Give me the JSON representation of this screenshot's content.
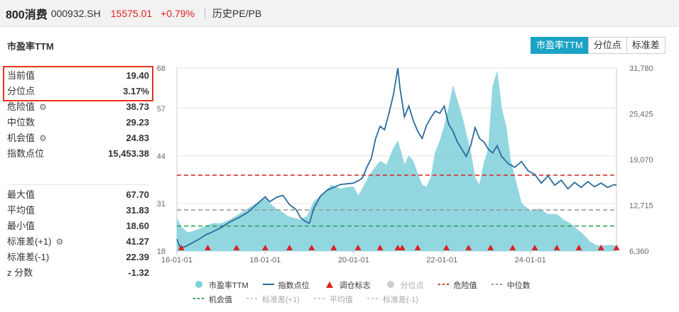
{
  "header": {
    "name": "800消费",
    "code": "000932.SH",
    "price": "15575.01",
    "change": "+0.79%",
    "tab": "历史PE/PB"
  },
  "metric_title": "市盈率TTM",
  "tabs": [
    {
      "label": "市盈率TTM",
      "active": true
    },
    {
      "label": "分位点",
      "active": false
    },
    {
      "label": "标准差",
      "active": false
    }
  ],
  "stats_top": [
    {
      "label": "当前值",
      "value": "19.40",
      "gear": false
    },
    {
      "label": "分位点",
      "value": "3.17%",
      "gear": false
    },
    {
      "label": "危险值",
      "value": "38.73",
      "gear": true
    },
    {
      "label": "中位数",
      "value": "29.23",
      "gear": false
    },
    {
      "label": "机会值",
      "value": "24.83",
      "gear": true
    },
    {
      "label": "指数点位",
      "value": "15,453.38",
      "gear": false
    }
  ],
  "stats_bottom": [
    {
      "label": "最大值",
      "value": "67.70",
      "gear": false
    },
    {
      "label": "平均值",
      "value": "31.83",
      "gear": false
    },
    {
      "label": "最小值",
      "value": "18.60",
      "gear": false
    },
    {
      "label": "标准差(+1)",
      "value": "41.27",
      "gear": true
    },
    {
      "label": "标准差(-1)",
      "value": "22.39",
      "gear": false
    },
    {
      "label": "z 分数",
      "value": "-1.32",
      "gear": false
    }
  ],
  "legend": [
    {
      "label": "市盈率TTM",
      "symbol": "circle",
      "color": "#7fcfda",
      "faded": false
    },
    {
      "label": "指数点位",
      "symbol": "line",
      "color": "#2a6c9c",
      "faded": false
    },
    {
      "label": "调仓标志",
      "symbol": "triangle",
      "color": "#e02020",
      "faded": false
    },
    {
      "label": "分位点",
      "symbol": "circle",
      "color": "#cccccc",
      "faded": true
    },
    {
      "label": "危险值",
      "symbol": "dash",
      "color": "#d93030",
      "faded": false
    },
    {
      "label": "中位数",
      "symbol": "dash",
      "color": "#999999",
      "faded": false
    },
    {
      "label": "机会值",
      "symbol": "dash",
      "color": "#2aa050",
      "faded": false
    },
    {
      "label": "标准差(+1)",
      "symbol": "dash",
      "color": "#cccccc",
      "faded": true
    },
    {
      "label": "平均值",
      "symbol": "dash",
      "color": "#cccccc",
      "faded": true
    },
    {
      "label": "标准差(-1)",
      "symbol": "dash",
      "color": "#cccccc",
      "faded": true
    }
  ],
  "chart_data": {
    "type": "area",
    "x_range": [
      2016.0,
      2025.95
    ],
    "x_ticks": [
      {
        "x": 2016.0,
        "label": "16-01-01"
      },
      {
        "x": 2018.0,
        "label": "18-01-01"
      },
      {
        "x": 2020.0,
        "label": "20-01-01"
      },
      {
        "x": 2022.0,
        "label": "22-01-01"
      },
      {
        "x": 2024.0,
        "label": "24-01-01"
      }
    ],
    "y_left": {
      "min": 18,
      "max": 68,
      "ticks": [
        18,
        31,
        44,
        57,
        68
      ]
    },
    "y_right": {
      "min": 6360,
      "max": 31780,
      "ticks": [
        "6,360",
        "12,715",
        "19,070",
        "25,425",
        "31,780"
      ],
      "tick_values": [
        6360,
        12715,
        19070,
        25425,
        31780
      ]
    },
    "grid": true,
    "reference_lines": [
      {
        "name": "危险值",
        "value": 38.73,
        "color": "#d93030"
      },
      {
        "name": "中位数",
        "value": 29.23,
        "color": "#999999"
      },
      {
        "name": "机会值",
        "value": 24.83,
        "color": "#2aa050"
      }
    ],
    "series": [
      {
        "name": "市盈率TTM",
        "axis": "left",
        "color": "#7fcfda",
        "x": [
          2016.0,
          2016.1,
          2016.25,
          2016.4,
          2016.6,
          2016.8,
          2017.0,
          2017.2,
          2017.4,
          2017.6,
          2017.8,
          2018.0,
          2018.1,
          2018.25,
          2018.4,
          2018.5,
          2018.65,
          2018.8,
          2018.95,
          2019.1,
          2019.3,
          2019.5,
          2019.7,
          2019.9,
          2020.0,
          2020.1,
          2020.2,
          2020.35,
          2020.5,
          2020.6,
          2020.75,
          2020.9,
          2021.0,
          2021.05,
          2021.15,
          2021.25,
          2021.35,
          2021.45,
          2021.55,
          2021.65,
          2021.75,
          2021.85,
          2021.95,
          2022.05,
          2022.15,
          2022.25,
          2022.35,
          2022.45,
          2022.55,
          2022.65,
          2022.75,
          2022.85,
          2022.95,
          2023.05,
          2023.15,
          2023.25,
          2023.35,
          2023.45,
          2023.55,
          2023.65,
          2023.8,
          2024.0,
          2024.2,
          2024.4,
          2024.6,
          2024.75,
          2024.9,
          2025.05,
          2025.2,
          2025.35,
          2025.5,
          2025.65,
          2025.8,
          2025.95
        ],
        "values": [
          27,
          24.5,
          23,
          23.5,
          24.5,
          25.5,
          25.5,
          26.5,
          28,
          29.5,
          31,
          32.5,
          31,
          29.5,
          28.5,
          27.5,
          27,
          26.5,
          27.5,
          31.5,
          33.5,
          36,
          35,
          35.5,
          35.5,
          33,
          35,
          38.5,
          41,
          42.5,
          41.5,
          46,
          48,
          46,
          41.5,
          44,
          42.5,
          39,
          36,
          35.5,
          38,
          45,
          48,
          52,
          57,
          63,
          59,
          55,
          50,
          45,
          38,
          36,
          42,
          46,
          63,
          67,
          57,
          52,
          43,
          38,
          31,
          29,
          29.5,
          28,
          28,
          26.5,
          25.5,
          24,
          22.5,
          20.5,
          19.5,
          19.4,
          19.6,
          19.4
        ]
      },
      {
        "name": "指数点位",
        "axis": "right",
        "color": "#2a6c9c",
        "x": [
          2016.0,
          2016.08,
          2016.2,
          2016.35,
          2016.5,
          2016.65,
          2016.8,
          2017.0,
          2017.2,
          2017.4,
          2017.6,
          2017.8,
          2018.0,
          2018.1,
          2018.25,
          2018.4,
          2018.55,
          2018.7,
          2018.8,
          2018.9,
          2019.0,
          2019.1,
          2019.25,
          2019.4,
          2019.55,
          2019.7,
          2019.85,
          2020.0,
          2020.1,
          2020.2,
          2020.3,
          2020.4,
          2020.5,
          2020.6,
          2020.7,
          2020.8,
          2020.9,
          2021.0,
          2021.05,
          2021.15,
          2021.25,
          2021.35,
          2021.45,
          2021.55,
          2021.65,
          2021.75,
          2021.85,
          2021.95,
          2022.05,
          2022.15,
          2022.25,
          2022.35,
          2022.45,
          2022.55,
          2022.65,
          2022.75,
          2022.85,
          2022.95,
          2023.05,
          2023.15,
          2023.25,
          2023.35,
          2023.5,
          2023.65,
          2023.8,
          2023.95,
          2024.1,
          2024.25,
          2024.4,
          2024.55,
          2024.7,
          2024.85,
          2025.0,
          2025.15,
          2025.3,
          2025.45,
          2025.6,
          2025.75,
          2025.9,
          2025.95
        ],
        "values": [
          8000,
          6800,
          7000,
          7500,
          8000,
          8600,
          9000,
          9600,
          10400,
          11000,
          11700,
          12800,
          13900,
          13200,
          13800,
          14100,
          12800,
          12100,
          11000,
          10500,
          10200,
          12300,
          14000,
          14800,
          15200,
          15600,
          15700,
          15800,
          16100,
          16500,
          18000,
          19200,
          22000,
          23700,
          23200,
          25500,
          28000,
          31780,
          29000,
          25000,
          26500,
          24500,
          23000,
          22000,
          23800,
          24900,
          25800,
          25500,
          26500,
          24000,
          23000,
          21500,
          20500,
          19500,
          21000,
          23500,
          22000,
          21500,
          20500,
          20000,
          21000,
          19500,
          18500,
          18000,
          18800,
          17500,
          17000,
          15800,
          16800,
          15500,
          16200,
          15000,
          15900,
          15200,
          16000,
          15300,
          15800,
          15200,
          15600,
          15453
        ]
      }
    ],
    "markers": [
      2016.1,
      2016.7,
      2017.35,
      2018.0,
      2018.55,
      2019.05,
      2019.55,
      2020.1,
      2020.6,
      2021.0,
      2021.1,
      2021.45,
      2022.1,
      2022.6,
      2023.1,
      2023.6,
      2024.1,
      2024.6,
      2025.1,
      2025.6,
      2025.95
    ]
  }
}
